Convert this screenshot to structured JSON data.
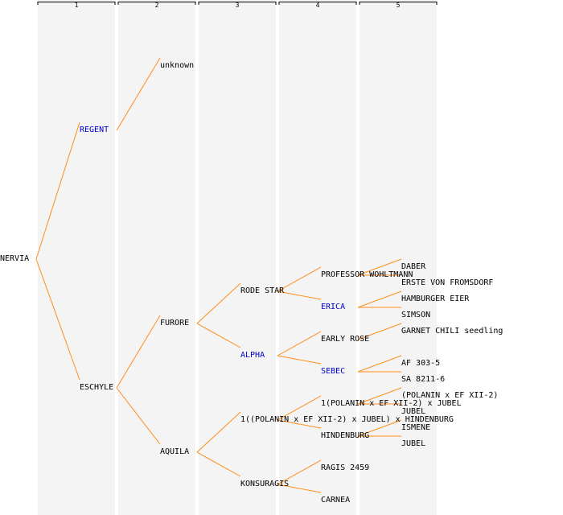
{
  "colors": {
    "edge": "#ff8c1a",
    "column_bg": "#f4f4f4",
    "column_divider": "#e2e2e2",
    "link_text": "#0000cc",
    "plain_text": "#000000"
  },
  "generations": [
    "1",
    "2",
    "3",
    "4",
    "5"
  ],
  "tree": {
    "label": "NERVIA",
    "link": false,
    "children": [
      {
        "label": "REGENT",
        "link": true,
        "children": [
          {
            "label": "unknown",
            "link": false
          }
        ]
      },
      {
        "label": "ESCHYLE",
        "link": false,
        "children": [
          {
            "label": "FURORE",
            "link": false,
            "children": [
              {
                "label": "RODE STAR",
                "link": false,
                "children": [
                  {
                    "label": "PROFESSOR WOHLTMANN",
                    "link": false,
                    "children": [
                      {
                        "label": "DABER",
                        "link": false
                      },
                      {
                        "label": "ERSTE VON FROMSDORF",
                        "link": false
                      }
                    ]
                  },
                  {
                    "label": "ERICA",
                    "link": true,
                    "children": [
                      {
                        "label": "HAMBURGER EIER",
                        "link": false
                      },
                      {
                        "label": "SIMSON",
                        "link": false
                      }
                    ]
                  }
                ]
              },
              {
                "label": "ALPHA",
                "link": true,
                "children": [
                  {
                    "label": "EARLY ROSE",
                    "link": false,
                    "children": [
                      {
                        "label": "GARNET CHILI seedling",
                        "link": false
                      }
                    ]
                  },
                  {
                    "label": "SEBEC",
                    "link": true,
                    "children": [
                      {
                        "label": "AF 303-5",
                        "link": false
                      },
                      {
                        "label": "SA 8211-6",
                        "link": false
                      }
                    ]
                  }
                ]
              }
            ]
          },
          {
            "label": "AQUILA",
            "link": false,
            "children": [
              {
                "label": "1((POLANIN x EF XII-2) x JUBEL) x HINDENBURG",
                "link": false,
                "children": [
                  {
                    "label": "1(POLANIN x EF XII-2) x JUBEL",
                    "link": false,
                    "children": [
                      {
                        "label": "(POLANIN x EF XII-2)",
                        "link": false
                      },
                      {
                        "label": "JUBEL",
                        "link": false
                      }
                    ]
                  },
                  {
                    "label": "HINDENBURG",
                    "link": false,
                    "children": [
                      {
                        "label": "ISMENE",
                        "link": false
                      },
                      {
                        "label": "JUBEL",
                        "link": false
                      }
                    ]
                  }
                ]
              },
              {
                "label": "KONSURAGIS",
                "link": false,
                "children": [
                  {
                    "label": "RAGIS 2459",
                    "link": false
                  },
                  {
                    "label": "CARNEA",
                    "link": false
                  }
                ]
              }
            ]
          }
        ]
      }
    ]
  }
}
